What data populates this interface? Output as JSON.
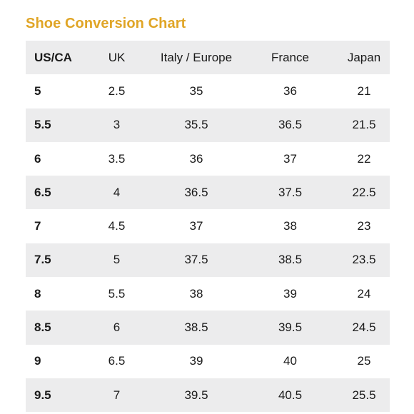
{
  "title": "Shoe Conversion Chart",
  "columns": [
    "US/CA",
    "UK",
    "Italy / Europe",
    "France",
    "Japan"
  ],
  "rows": [
    [
      "5",
      "2.5",
      "35",
      "36",
      "21"
    ],
    [
      "5.5",
      "3",
      "35.5",
      "36.5",
      "21.5"
    ],
    [
      "6",
      "3.5",
      "36",
      "37",
      "22"
    ],
    [
      "6.5",
      "4",
      "36.5",
      "37.5",
      "22.5"
    ],
    [
      "7",
      "4.5",
      "37",
      "38",
      "23"
    ],
    [
      "7.5",
      "5",
      "37.5",
      "38.5",
      "23.5"
    ],
    [
      "8",
      "5.5",
      "38",
      "39",
      "24"
    ],
    [
      "8.5",
      "6",
      "38.5",
      "39.5",
      "24.5"
    ],
    [
      "9",
      "6.5",
      "39",
      "40",
      "25"
    ],
    [
      "9.5",
      "7",
      "39.5",
      "40.5",
      "25.5"
    ]
  ],
  "colors": {
    "title": "#e0a526",
    "shaded_row": "#ececed",
    "text": "#1a1a1a"
  }
}
